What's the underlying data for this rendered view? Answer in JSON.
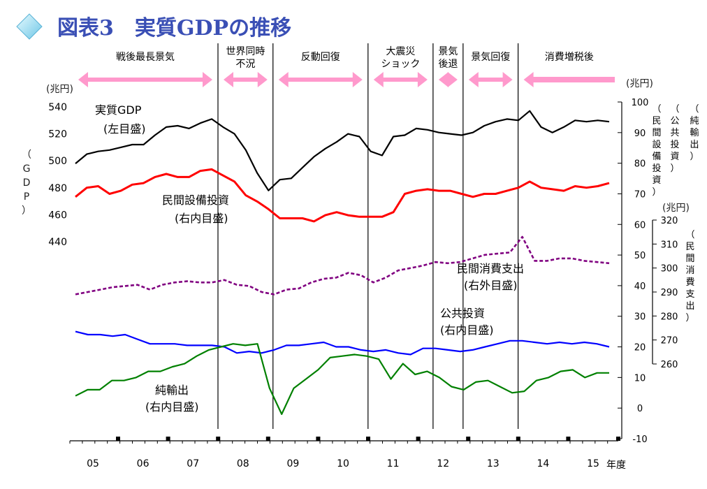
{
  "title": "図表3　実質GDPの推移",
  "chart_data": {
    "type": "line",
    "x_labels": [
      "05",
      "06",
      "07",
      "08",
      "09",
      "10",
      "11",
      "12",
      "13",
      "14",
      "15"
    ],
    "x_unit": "年度",
    "left_axis": {
      "unit": "(兆円)",
      "title": "（GDP）",
      "ticks": [
        "540",
        "520",
        "500",
        "480",
        "460",
        "440"
      ],
      "range": [
        440,
        540
      ]
    },
    "right_inner_axis": {
      "unit": "(兆円)",
      "ticks": [
        "100",
        "90",
        "80",
        "70",
        "60",
        "50",
        "40",
        "30",
        "20",
        "10",
        "0",
        "-10"
      ],
      "range": [
        -10,
        100
      ]
    },
    "right_outer_axis": {
      "unit": "(兆円)",
      "title": "（民間消費支出）",
      "ticks": [
        "320",
        "310",
        "300",
        "290",
        "280",
        "270",
        "260"
      ],
      "range": [
        260,
        320
      ]
    },
    "right_axis_titles": [
      "（民間設備投資）",
      "（公共投資）",
      "（純輸出）"
    ],
    "eras": [
      {
        "label": "戦後最長景気",
        "from": 2005.0,
        "to": 2008.0,
        "dir": "both"
      },
      {
        "label": "世界同時\n不況",
        "from": 2008.0,
        "to": 2009.1,
        "dir": "both"
      },
      {
        "label": "反動回復",
        "from": 2009.1,
        "to": 2011.0,
        "dir": "both"
      },
      {
        "label": "大震災\nショック",
        "from": 2011.0,
        "to": 2012.3,
        "dir": "both"
      },
      {
        "label": "景気\n後退",
        "from": 2012.3,
        "to": 2012.9,
        "dir": "both"
      },
      {
        "label": "景気回復",
        "from": 2012.9,
        "to": 2014.0,
        "dir": "both"
      },
      {
        "label": "消費増税後",
        "from": 2014.0,
        "to": 2016.0,
        "dir": "left"
      }
    ],
    "vlines": [
      2008.0,
      2009.1,
      2011.0,
      2012.3,
      2012.9,
      2014.0
    ],
    "series": [
      {
        "name": "実質GDP",
        "sub": "(左目盛)",
        "axis": "left",
        "color": "#000000",
        "style": "solid",
        "values": [
          498,
          505,
          507,
          508,
          510,
          512,
          512,
          519,
          525,
          526,
          524,
          528,
          531,
          525,
          520,
          508,
          491,
          478,
          486,
          487,
          495,
          503,
          509,
          514,
          520,
          518,
          507,
          504,
          518,
          519,
          524,
          523,
          521,
          520,
          519,
          521,
          526,
          529,
          531,
          530,
          537,
          525,
          521,
          525,
          530,
          529,
          530,
          529
        ]
      },
      {
        "name": "民間設備投資",
        "sub": "(右内目盛)",
        "axis": "right_inner",
        "color": "#ff0000",
        "style": "solid",
        "values": [
          69,
          72,
          72.5,
          70,
          71,
          73,
          73.5,
          75.5,
          76.5,
          75.5,
          75.5,
          77.5,
          78,
          76,
          74,
          69.5,
          67.5,
          65,
          62,
          62,
          62,
          61,
          63,
          64,
          63,
          62.5,
          62.5,
          62.5,
          64,
          70,
          71,
          71.5,
          71,
          71,
          70,
          69,
          70,
          70,
          71,
          72,
          74,
          72,
          71.5,
          71,
          72.5,
          72,
          72.5,
          73.5
        ]
      },
      {
        "name": "民間消費支出",
        "sub": "(右外目盛)",
        "axis": "right_outer",
        "color": "#800080",
        "style": "dashed",
        "values": [
          289,
          290,
          291,
          292,
          292.5,
          293,
          291,
          293,
          294,
          294.5,
          294,
          294,
          295,
          293,
          292.5,
          290,
          289,
          291,
          291.5,
          294,
          295.5,
          296,
          298,
          297,
          294,
          296,
          299,
          300,
          301,
          302.5,
          302,
          302.5,
          304,
          305.5,
          306,
          306.5,
          313,
          303,
          303,
          304,
          304,
          303,
          302.5,
          302
        ]
      },
      {
        "name": "公共投資",
        "sub": "(右内目盛)",
        "axis": "right_inner",
        "color": "#0000ff",
        "style": "solid",
        "values": [
          25,
          24,
          24,
          23.5,
          24,
          22.5,
          21,
          21,
          21,
          20.5,
          20.5,
          20.5,
          20,
          18,
          18.5,
          18,
          19,
          20.5,
          20.5,
          21,
          21.5,
          20,
          20,
          19,
          18.5,
          19,
          18,
          17.5,
          19.5,
          19.5,
          19,
          18.5,
          19,
          20,
          21,
          22,
          22,
          21.5,
          21,
          21.5,
          21,
          21.5,
          21,
          20
        ]
      },
      {
        "name": "純輸出",
        "sub": "(右内目盛)",
        "axis": "right_inner",
        "color": "#008000",
        "style": "solid",
        "values": [
          4,
          6,
          6,
          9,
          9,
          10,
          12,
          12,
          13.5,
          14.5,
          17,
          19,
          20,
          21,
          20.5,
          21,
          6.5,
          -2,
          6.5,
          9.5,
          12.5,
          16.5,
          17,
          17.5,
          17,
          16,
          9.5,
          14.5,
          11,
          12,
          10,
          7,
          6,
          8.5,
          9,
          7,
          5,
          5.5,
          9,
          10,
          12,
          12.5,
          10,
          11.5,
          11.5
        ]
      }
    ]
  }
}
